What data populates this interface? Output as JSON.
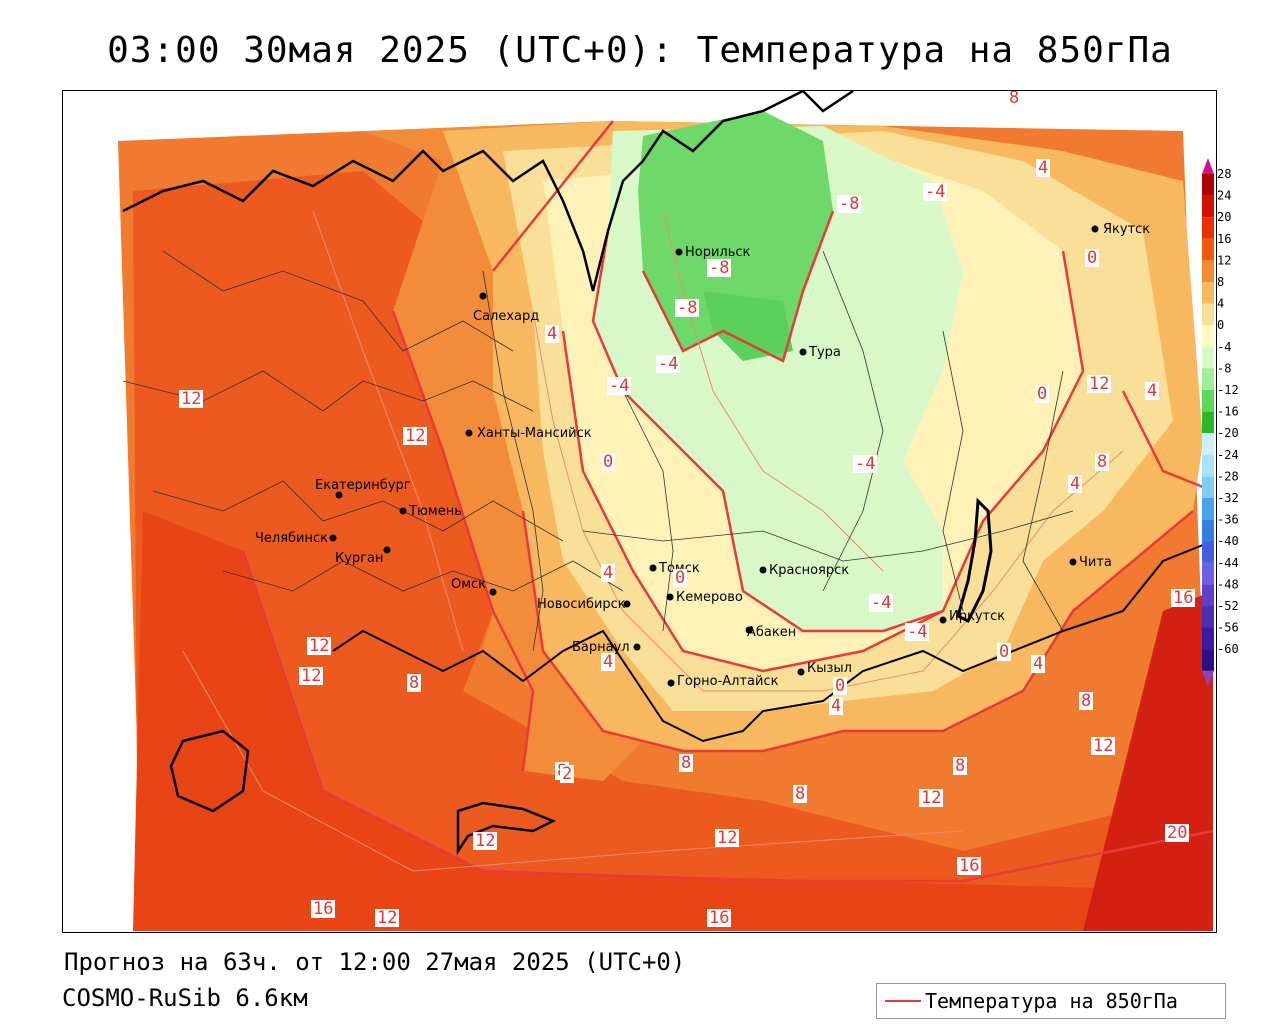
{
  "title": "03:00 30мая 2025 (UTC+0): Температура на 850гПа",
  "footer": {
    "forecast": "Прогноз на 63ч. от 12:00 27мая 2025 (UTC+0)",
    "model": "COSMO-RuSib 6.6км"
  },
  "legend": {
    "label": "Температура на 850гПа",
    "line_color": "#e83a3a"
  },
  "colorbar": {
    "ticks": [
      "28",
      "24",
      "20",
      "16",
      "12",
      "8",
      "4",
      "0",
      "-4",
      "-8",
      "-12",
      "-16",
      "-20",
      "-24",
      "-28",
      "-32",
      "-36",
      "-40",
      "-44",
      "-48",
      "-52",
      "-56",
      "-60"
    ],
    "colors": [
      "#b00000",
      "#d41000",
      "#e83000",
      "#f05a10",
      "#f58a30",
      "#f8b860",
      "#fadf98",
      "#fff6c0",
      "#d8f8c8",
      "#a0ee98",
      "#5cd85c",
      "#28b828",
      "#cceeff",
      "#a8e2f6",
      "#80ccf0",
      "#4aa4e8",
      "#3080e0",
      "#4060e0",
      "#6a60e0",
      "#6040c8",
      "#4830b0",
      "#3a1aa0",
      "#2a1080"
    ],
    "top_color": "#d01090",
    "bottom_color": "#9040c0"
  },
  "cities": [
    {
      "name": "Якутск"
    },
    {
      "name": "Норильск"
    },
    {
      "name": "Салехард"
    },
    {
      "name": "Тура"
    },
    {
      "name": "Ханты-Мансийск"
    },
    {
      "name": "Екатеринбург"
    },
    {
      "name": "Тюмень"
    },
    {
      "name": "Челябинск"
    },
    {
      "name": "Курган"
    },
    {
      "name": "Омск"
    },
    {
      "name": "Новосибирск"
    },
    {
      "name": "Томск"
    },
    {
      "name": "Кемерово"
    },
    {
      "name": "Красноярск"
    },
    {
      "name": "Барнаул"
    },
    {
      "name": "Абакен"
    },
    {
      "name": "Иркутск"
    },
    {
      "name": "Чита"
    },
    {
      "name": "Горно-Алтайск"
    },
    {
      "name": "Кызыл"
    }
  ],
  "isotherm_labels": [
    "8",
    "4",
    "0",
    "-8",
    "-4",
    "-8",
    "-8",
    "-4",
    "4",
    "-4",
    "0",
    "-4",
    "12",
    "12",
    "12",
    "12",
    "8",
    "4",
    "0",
    "4",
    "4",
    "8",
    "16",
    "12",
    "8",
    "8",
    "12",
    "12",
    "8",
    "12",
    "16",
    "12",
    "20",
    "16",
    "16",
    "12",
    "-4",
    "-4",
    "0",
    "4",
    "8",
    "8",
    "4",
    "0",
    "4",
    "0",
    "2"
  ]
}
